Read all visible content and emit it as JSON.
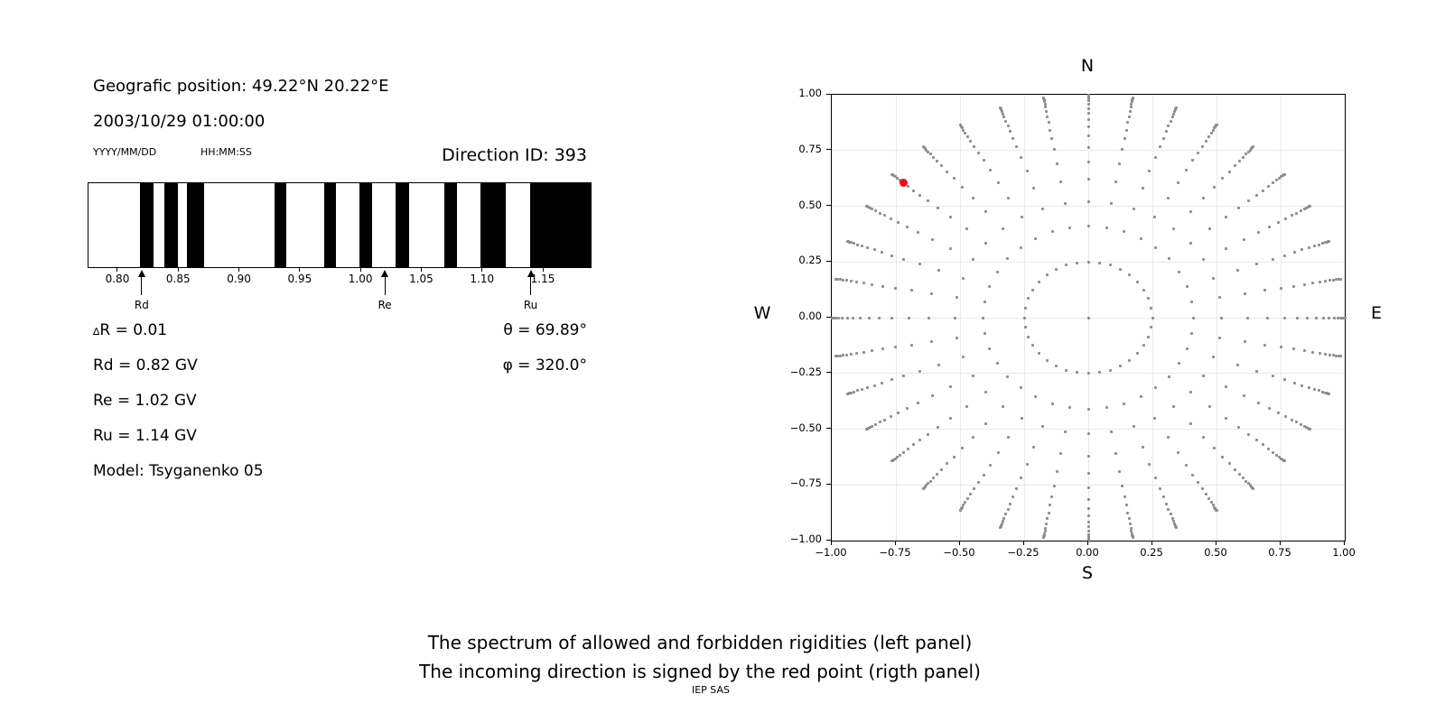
{
  "colors": {
    "bar": "#000000",
    "gray_dot": "#8e8e8e",
    "red_dot": "#f01010",
    "grid": "#e9e9e9",
    "axis": "#000000"
  },
  "header": {
    "geo_position": "Geografic position: 49.22°N 20.22°E",
    "datetime": "2003/10/29 01:00:00",
    "date_format_label": "YYYY/MM/DD",
    "time_format_label": "HH:MM:SS",
    "direction_id": "Direction ID: 393"
  },
  "parameters": {
    "delta_symbol": "∆",
    "delta_line": "R = 0.01",
    "rd_line": "Rd = 0.82 GV",
    "re_line": "Re = 1.02 GV",
    "ru_line": "Ru = 1.14 GV",
    "model_line": "Model: Tsyganenko 05",
    "theta_line": "θ = 69.89°",
    "phi_line": "φ = 320.0°"
  },
  "caption": {
    "line1": "The spectrum of allowed and forbidden rigidities (left panel)",
    "line2": "The incoming direction is signed by the red point (rigth panel)",
    "credit": "IEP SAS"
  },
  "chart_data": [
    {
      "type": "bar",
      "name": "rigidity-spectrum",
      "description": "Allowed (white) and forbidden (black) rigidity bands",
      "xlim": [
        0.7755,
        1.1901
      ],
      "tick_values": [
        0.8,
        0.85,
        0.9,
        0.95,
        1.0,
        1.05,
        1.1,
        1.15
      ],
      "tick_labels": [
        "0.80",
        "0.85",
        "0.90",
        "0.95",
        "1.00",
        "1.05",
        "1.10",
        "1.15"
      ],
      "forbidden_bands": [
        [
          0.818,
          0.829
        ],
        [
          0.838,
          0.849
        ],
        [
          0.857,
          0.871
        ],
        [
          0.929,
          0.939
        ],
        [
          0.97,
          0.98
        ],
        [
          0.999,
          1.01
        ],
        [
          1.029,
          1.04
        ],
        [
          1.069,
          1.08
        ],
        [
          1.099,
          1.12
        ],
        [
          1.14,
          1.1901
        ]
      ],
      "markers": [
        {
          "label": "Rd",
          "value": 0.82
        },
        {
          "label": "Re",
          "value": 1.02
        },
        {
          "label": "Ru",
          "value": 1.14
        }
      ]
    },
    {
      "type": "scatter",
      "name": "arrival-direction-map",
      "xlim": [
        -1,
        1
      ],
      "ylim": [
        -1,
        1
      ],
      "grid": true,
      "x_tick_values": [
        -1,
        -0.75,
        -0.5,
        -0.25,
        0,
        0.25,
        0.5,
        0.75,
        1
      ],
      "x_tick_labels": [
        "−1.00",
        "−0.75",
        "−0.50",
        "−0.25",
        "0.00",
        "0.25",
        "0.50",
        "0.75",
        "1.00"
      ],
      "y_tick_values": [
        1,
        0.75,
        0.5,
        0.25,
        0,
        -0.25,
        -0.5,
        -0.75,
        -1
      ],
      "y_tick_labels": [
        "1.00",
        "0.75",
        "0.50",
        "0.25",
        "0.00",
        "−0.25",
        "−0.50",
        "−0.75",
        "−1.00"
      ],
      "cardinal": {
        "north": "N",
        "south": "S",
        "west": "W",
        "east": "E"
      },
      "gray_directions": {
        "azimuth_step_deg": 10,
        "center_dot": true,
        "ring_radius": 0.25,
        "spoke_radii": [
          0.41,
          0.52,
          0.62,
          0.7,
          0.765,
          0.815,
          0.855,
          0.888,
          0.916,
          0.939,
          0.958,
          0.972,
          0.983,
          0.991,
          0.996,
          1.0
        ]
      },
      "red_point": {
        "x": -0.72,
        "y": 0.604
      }
    }
  ]
}
